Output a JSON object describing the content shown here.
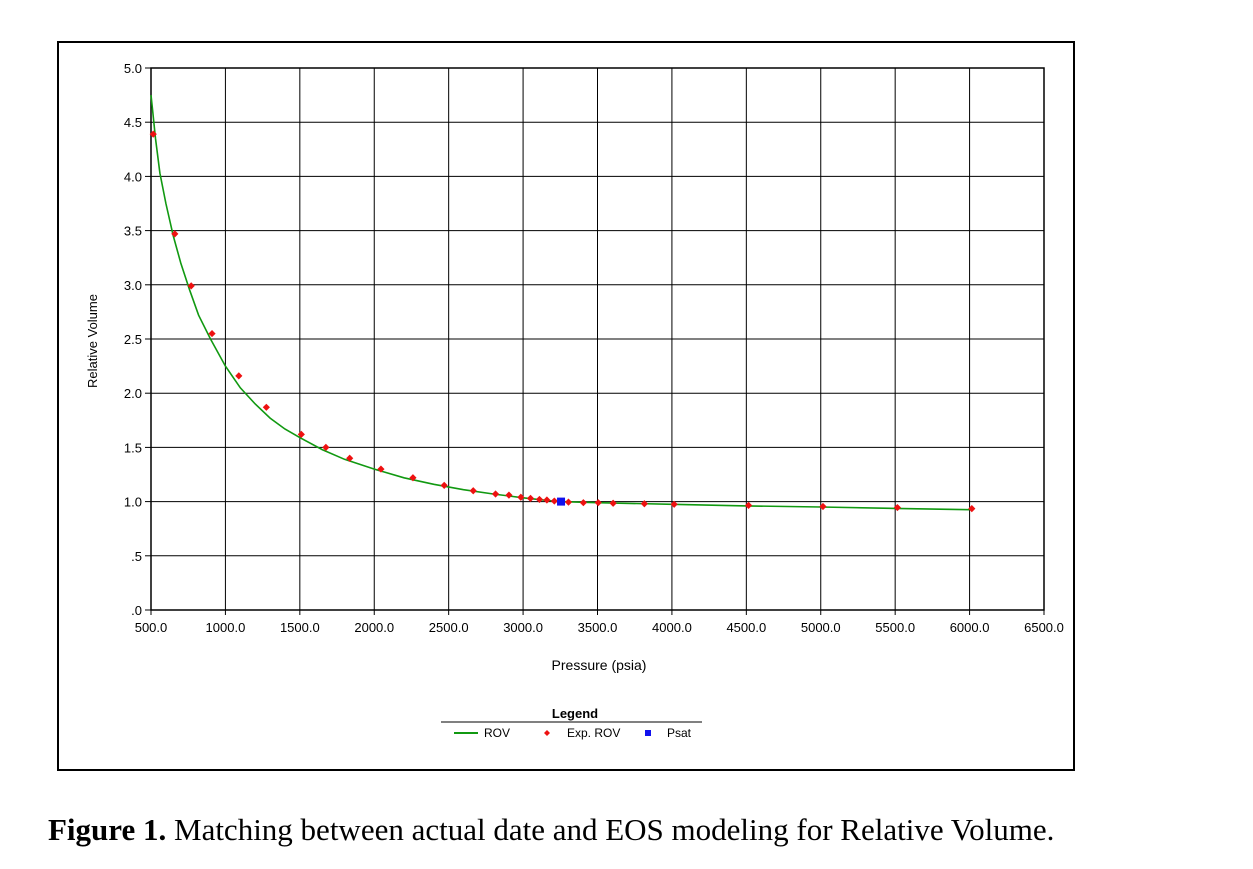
{
  "chart_data": {
    "type": "line",
    "title": "",
    "xlabel": "Pressure (psia)",
    "ylabel": "Relative Volume",
    "xlim": [
      500,
      6500
    ],
    "ylim": [
      0,
      5
    ],
    "x_ticks": [
      500,
      1000,
      1500,
      2000,
      2500,
      3000,
      3500,
      4000,
      4500,
      5000,
      5500,
      6000,
      6500
    ],
    "x_tick_labels": [
      "500.0",
      "1000.0",
      "1500.0",
      "2000.0",
      "2500.0",
      "3000.0",
      "3500.0",
      "4000.0",
      "4500.0",
      "5000.0",
      "5500.0",
      "6000.0",
      "6500.0"
    ],
    "y_ticks": [
      0,
      0.5,
      1,
      1.5,
      2,
      2.5,
      3,
      3.5,
      4,
      4.5,
      5
    ],
    "y_tick_labels": [
      ".0",
      ".5",
      "1.0",
      "1.5",
      "2.0",
      "2.5",
      "3.0",
      "3.5",
      "4.0",
      "4.5",
      "5.0"
    ],
    "grid": true,
    "legend_title": "Legend",
    "legend_position": "bottom-center",
    "series": [
      {
        "name": "ROV",
        "kind": "line",
        "color": "#119911",
        "x": [
          500,
          510,
          530,
          560,
          600,
          650,
          700,
          760,
          820,
          900,
          1000,
          1100,
          1200,
          1300,
          1400,
          1500,
          1650,
          1800,
          2000,
          2200,
          2400,
          2600,
          2800,
          3000,
          3100,
          3200,
          3255,
          3300,
          3500,
          4000,
          4500,
          5000,
          5500,
          6000
        ],
        "y": [
          4.75,
          4.62,
          4.35,
          4.03,
          3.75,
          3.45,
          3.2,
          2.95,
          2.72,
          2.5,
          2.25,
          2.05,
          1.9,
          1.77,
          1.67,
          1.59,
          1.48,
          1.39,
          1.3,
          1.22,
          1.16,
          1.11,
          1.07,
          1.035,
          1.02,
          1.005,
          1.0,
          0.998,
          0.99,
          0.975,
          0.96,
          0.95,
          0.937,
          0.925
        ]
      },
      {
        "name": "Exp. ROV",
        "kind": "scatter",
        "color": "#ee1111",
        "x": [
          515,
          660,
          770,
          910,
          1090,
          1275,
          1510,
          1675,
          1835,
          2045,
          2260,
          2470,
          2665,
          2815,
          2905,
          2985,
          3050,
          3110,
          3160,
          3210,
          3305,
          3405,
          3505,
          3605,
          3815,
          4015,
          4515,
          5015,
          5515,
          6015
        ],
        "y": [
          4.39,
          3.47,
          2.99,
          2.55,
          2.16,
          1.87,
          1.62,
          1.5,
          1.4,
          1.3,
          1.22,
          1.15,
          1.1,
          1.07,
          1.06,
          1.04,
          1.03,
          1.02,
          1.015,
          1.005,
          0.995,
          0.99,
          0.99,
          0.985,
          0.98,
          0.975,
          0.965,
          0.955,
          0.945,
          0.935
        ]
      },
      {
        "name": "Psat",
        "kind": "scatter",
        "color": "#1111ee",
        "x": [
          3255
        ],
        "y": [
          1.0
        ]
      }
    ]
  },
  "caption": {
    "label": "Figure 1.",
    "text": " Matching between actual date and EOS modeling for Relative Volume."
  }
}
